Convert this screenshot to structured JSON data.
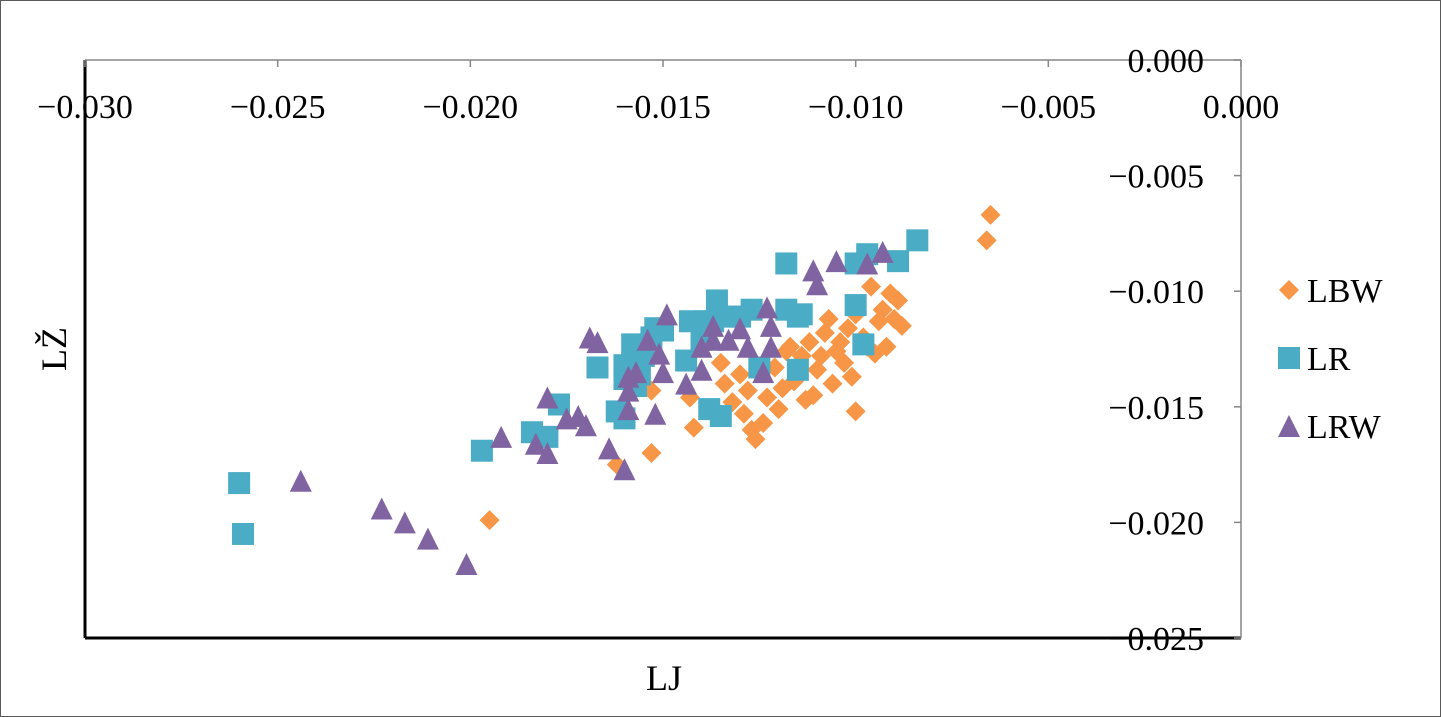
{
  "chart_data": {
    "type": "scatter",
    "xlabel": "LJ",
    "ylabel": "LŽ",
    "xlim": [
      -0.03,
      0.0
    ],
    "ylim": [
      -0.025,
      0.0
    ],
    "x_ticks": [
      "−0.030",
      "−0.025",
      "−0.020",
      "−0.015",
      "−0.010",
      "−0.005",
      "0.000"
    ],
    "y_ticks": [
      "0.000",
      "−0.005",
      "−0.010",
      "−0.015",
      "−0.020",
      "−0.025"
    ],
    "legend_position": "right",
    "grid": false,
    "series": [
      {
        "name": "LBW",
        "color": "#f79646",
        "marker": "diamond",
        "points": [
          [
            -0.0065,
            -0.0067
          ],
          [
            -0.0066,
            -0.0078
          ],
          [
            -0.0089,
            -0.0104
          ],
          [
            -0.0091,
            -0.0101
          ],
          [
            -0.0093,
            -0.0108
          ],
          [
            -0.009,
            -0.0112
          ],
          [
            -0.0088,
            -0.0115
          ],
          [
            -0.0096,
            -0.0098
          ],
          [
            -0.0094,
            -0.0113
          ],
          [
            -0.0092,
            -0.0124
          ],
          [
            -0.0095,
            -0.0127
          ],
          [
            -0.0098,
            -0.012
          ],
          [
            -0.01,
            -0.011
          ],
          [
            -0.0102,
            -0.0116
          ],
          [
            -0.0104,
            -0.0122
          ],
          [
            -0.0103,
            -0.0131
          ],
          [
            -0.0101,
            -0.0137
          ],
          [
            -0.0105,
            -0.0126
          ],
          [
            -0.0107,
            -0.0112
          ],
          [
            -0.0108,
            -0.0118
          ],
          [
            -0.0109,
            -0.0128
          ],
          [
            -0.0106,
            -0.014
          ],
          [
            -0.011,
            -0.0134
          ],
          [
            -0.0111,
            -0.0145
          ],
          [
            -0.0113,
            -0.0147
          ],
          [
            -0.0115,
            -0.0132
          ],
          [
            -0.0116,
            -0.0139
          ],
          [
            -0.0117,
            -0.0124
          ],
          [
            -0.0119,
            -0.0142
          ],
          [
            -0.012,
            -0.0151
          ],
          [
            -0.0121,
            -0.0133
          ],
          [
            -0.0123,
            -0.0146
          ],
          [
            -0.0124,
            -0.0157
          ],
          [
            -0.0126,
            -0.0164
          ],
          [
            -0.0127,
            -0.016
          ],
          [
            -0.0128,
            -0.0143
          ],
          [
            -0.0129,
            -0.0153
          ],
          [
            -0.013,
            -0.0136
          ],
          [
            -0.0132,
            -0.0148
          ],
          [
            -0.0134,
            -0.014
          ],
          [
            -0.0135,
            -0.0131
          ],
          [
            -0.0142,
            -0.0159
          ],
          [
            -0.0143,
            -0.0146
          ],
          [
            -0.0153,
            -0.0143
          ],
          [
            -0.0153,
            -0.017
          ],
          [
            -0.0162,
            -0.0175
          ],
          [
            -0.0195,
            -0.0199
          ],
          [
            -0.0112,
            -0.0122
          ],
          [
            -0.0114,
            -0.0128
          ],
          [
            -0.0118,
            -0.0126
          ],
          [
            -0.01,
            -0.0152
          ],
          [
            -0.0097,
            -0.0124
          ]
        ]
      },
      {
        "name": "LR",
        "color": "#4bacc6",
        "marker": "square",
        "points": [
          [
            -0.0084,
            -0.0078
          ],
          [
            -0.0089,
            -0.0087
          ],
          [
            -0.0097,
            -0.0084
          ],
          [
            -0.01,
            -0.0088
          ],
          [
            -0.01,
            -0.0106
          ],
          [
            -0.0098,
            -0.0123
          ],
          [
            -0.0118,
            -0.0088
          ],
          [
            -0.0118,
            -0.0108
          ],
          [
            -0.0115,
            -0.0111
          ],
          [
            -0.0114,
            -0.011
          ],
          [
            -0.0115,
            -0.0134
          ],
          [
            -0.0125,
            -0.0133
          ],
          [
            -0.0127,
            -0.0108
          ],
          [
            -0.013,
            -0.0111
          ],
          [
            -0.0133,
            -0.0111
          ],
          [
            -0.0136,
            -0.0104
          ],
          [
            -0.0137,
            -0.0113
          ],
          [
            -0.0139,
            -0.0113
          ],
          [
            -0.0143,
            -0.0113
          ],
          [
            -0.014,
            -0.0121
          ],
          [
            -0.0144,
            -0.013
          ],
          [
            -0.0138,
            -0.0151
          ],
          [
            -0.0135,
            -0.0154
          ],
          [
            -0.015,
            -0.0117
          ],
          [
            -0.0152,
            -0.0116
          ],
          [
            -0.0153,
            -0.012
          ],
          [
            -0.0158,
            -0.0123
          ],
          [
            -0.0155,
            -0.0128
          ],
          [
            -0.016,
            -0.0132
          ],
          [
            -0.0156,
            -0.0136
          ],
          [
            -0.0157,
            -0.0141
          ],
          [
            -0.016,
            -0.0138
          ],
          [
            -0.016,
            -0.0155
          ],
          [
            -0.0162,
            -0.0152
          ],
          [
            -0.0167,
            -0.0133
          ],
          [
            -0.0177,
            -0.0149
          ],
          [
            -0.018,
            -0.0163
          ],
          [
            -0.0184,
            -0.0161
          ],
          [
            -0.0197,
            -0.0169
          ],
          [
            -0.026,
            -0.0183
          ],
          [
            -0.0259,
            -0.0205
          ]
        ]
      },
      {
        "name": "LRW",
        "color": "#8064a2",
        "marker": "triangle",
        "points": [
          [
            -0.0093,
            -0.0083
          ],
          [
            -0.0097,
            -0.0088
          ],
          [
            -0.0105,
            -0.0087
          ],
          [
            -0.0111,
            -0.0091
          ],
          [
            -0.011,
            -0.0097
          ],
          [
            -0.0123,
            -0.0107
          ],
          [
            -0.0122,
            -0.0115
          ],
          [
            -0.0122,
            -0.0124
          ],
          [
            -0.0124,
            -0.0135
          ],
          [
            -0.0128,
            -0.0124
          ],
          [
            -0.013,
            -0.0116
          ],
          [
            -0.0133,
            -0.0121
          ],
          [
            -0.0137,
            -0.0115
          ],
          [
            -0.0137,
            -0.0121
          ],
          [
            -0.014,
            -0.0124
          ],
          [
            -0.014,
            -0.0134
          ],
          [
            -0.0144,
            -0.014
          ],
          [
            -0.0149,
            -0.011
          ],
          [
            -0.0151,
            -0.0127
          ],
          [
            -0.015,
            -0.0135
          ],
          [
            -0.0154,
            -0.0121
          ],
          [
            -0.0152,
            -0.0153
          ],
          [
            -0.0157,
            -0.0135
          ],
          [
            -0.0159,
            -0.0137
          ],
          [
            -0.0159,
            -0.0143
          ],
          [
            -0.0159,
            -0.0151
          ],
          [
            -0.016,
            -0.0177
          ],
          [
            -0.0167,
            -0.0122
          ],
          [
            -0.0169,
            -0.012
          ],
          [
            -0.0164,
            -0.0168
          ],
          [
            -0.017,
            -0.0158
          ],
          [
            -0.0172,
            -0.0154
          ],
          [
            -0.0175,
            -0.0155
          ],
          [
            -0.018,
            -0.0146
          ],
          [
            -0.018,
            -0.017
          ],
          [
            -0.0183,
            -0.0166
          ],
          [
            -0.0192,
            -0.0163
          ],
          [
            -0.0244,
            -0.0182
          ],
          [
            -0.0223,
            -0.0194
          ],
          [
            -0.0217,
            -0.02
          ],
          [
            -0.0211,
            -0.0207
          ],
          [
            -0.0201,
            -0.0218
          ]
        ]
      }
    ]
  }
}
